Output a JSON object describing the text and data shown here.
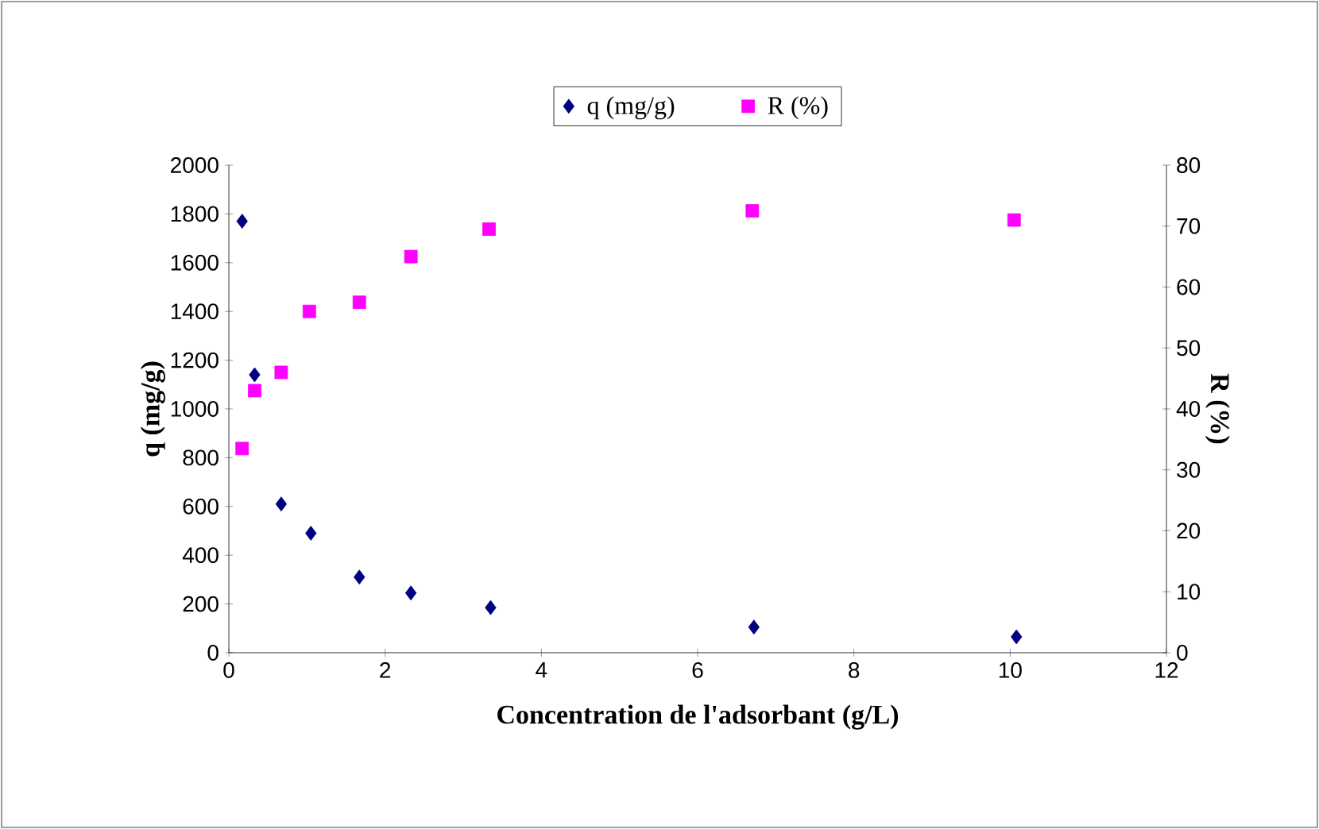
{
  "chart_data": {
    "type": "scatter",
    "xlabel": "Concentration de l'adsorbant (g/L)",
    "ylabel": "q (mg/g)",
    "y2label": "R (%)",
    "xlim": [
      0,
      12
    ],
    "xticks": [
      0,
      2,
      4,
      6,
      8,
      10,
      12
    ],
    "ylim": [
      0,
      2000
    ],
    "yticks": [
      0,
      200,
      400,
      600,
      800,
      1000,
      1200,
      1400,
      1600,
      1800,
      2000
    ],
    "y2lim": [
      0,
      80
    ],
    "y2ticks": [
      0,
      10,
      20,
      30,
      40,
      50,
      60,
      70,
      80
    ],
    "legend": "top",
    "series": [
      {
        "name": "q (mg/g)",
        "color": "#000080",
        "marker": "diamond",
        "x": [
          0.17,
          0.33,
          0.67,
          1.05,
          1.67,
          2.33,
          3.35,
          6.72,
          10.08
        ],
        "values": [
          1770,
          1140,
          610,
          490,
          310,
          245,
          185,
          105,
          65
        ]
      },
      {
        "name": "R (%)",
        "color": "#ff00ff",
        "marker": "square",
        "axis": "y2",
        "x": [
          0.17,
          0.33,
          0.67,
          1.03,
          1.67,
          2.33,
          3.33,
          6.7,
          10.05
        ],
        "values": [
          33.5,
          43,
          46,
          56,
          57.5,
          65,
          69.5,
          72.5,
          71
        ]
      }
    ]
  }
}
